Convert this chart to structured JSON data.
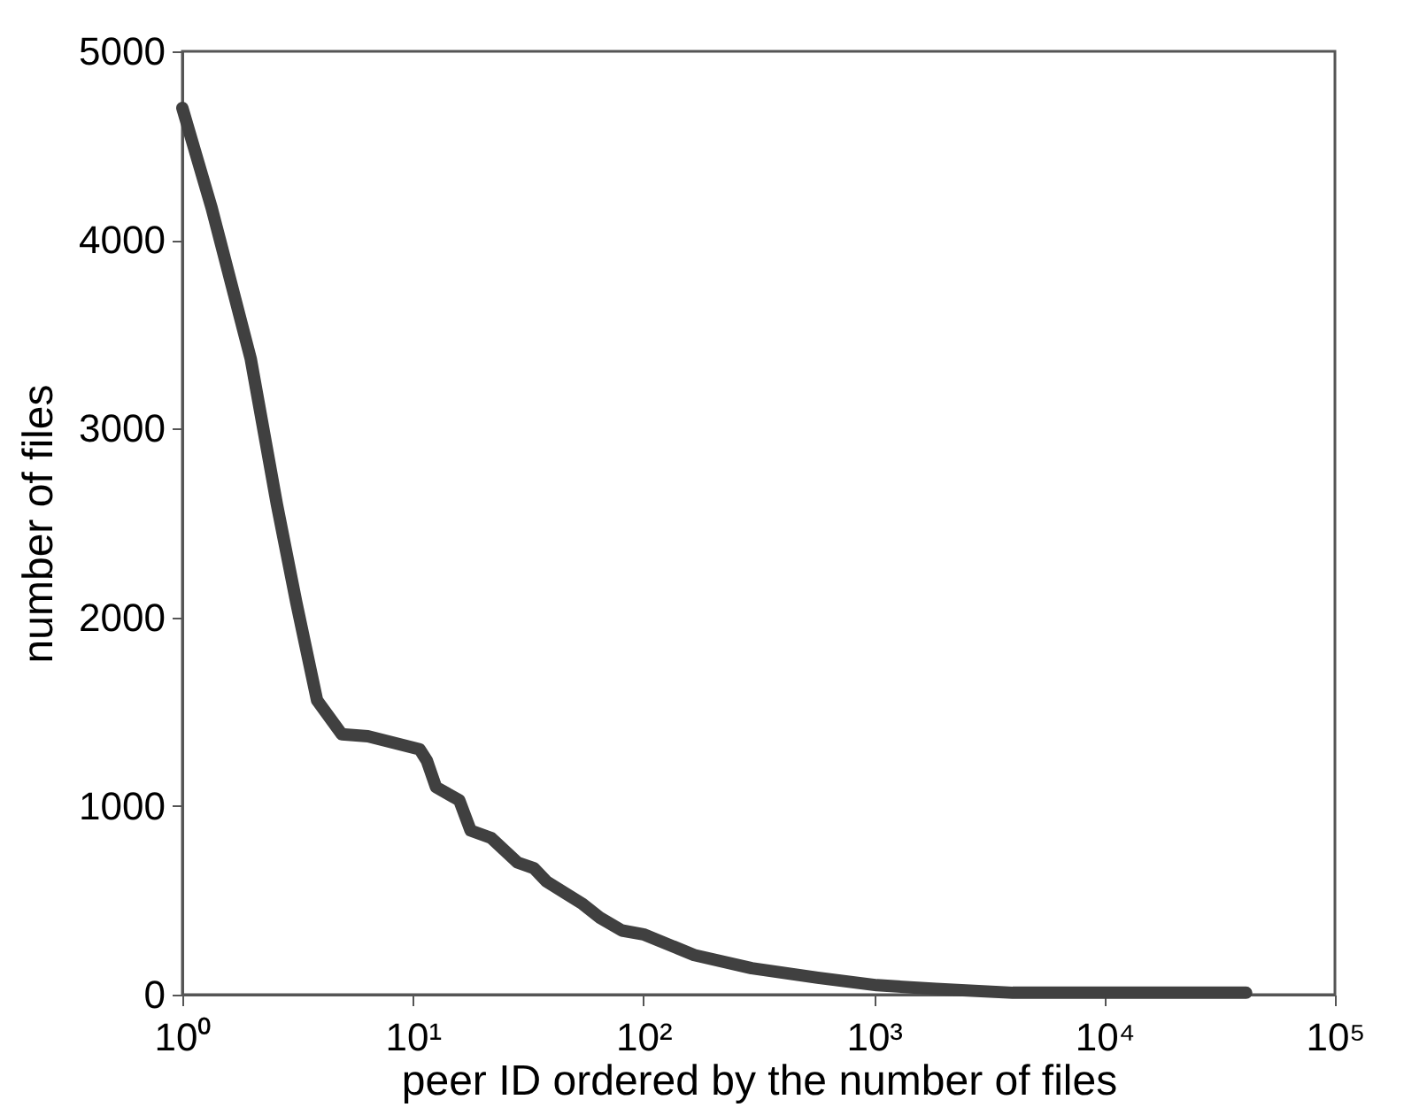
{
  "chart_data": {
    "type": "line",
    "xlabel": "peer ID ordered by the number of files",
    "ylabel": "number of files",
    "x": [
      1,
      1.34,
      1.98,
      2.57,
      3.12,
      3.84,
      4.92,
      6.38,
      10.7,
      11.5,
      12.6,
      15.9,
      17.8,
      21.9,
      28.5,
      33.5,
      38,
      54.6,
      64.4,
      80.7,
      100,
      166,
      295,
      570,
      1030,
      1860,
      4000,
      41200
    ],
    "series": [
      {
        "color": "#404040",
        "values": [
          4700,
          4170,
          3370,
          2600,
          2080,
          1560,
          1380,
          1370,
          1300,
          1240,
          1100,
          1030,
          870,
          830,
          700,
          670,
          600,
          480,
          410,
          340,
          320,
          210,
          140,
          90,
          50,
          30,
          10,
          10
        ]
      }
    ],
    "xlim": [
      1,
      100000
    ],
    "ylim": [
      0,
      5000
    ],
    "log": "x",
    "xticks": [
      {
        "value": 1,
        "label": "10⁰"
      },
      {
        "value": 10,
        "label": "10¹"
      },
      {
        "value": 100,
        "label": "10²"
      },
      {
        "value": 1000,
        "label": "10³"
      },
      {
        "value": 10000,
        "label": "10⁴"
      },
      {
        "value": 100000,
        "label": "10⁵"
      }
    ],
    "yticks": [
      0,
      1000,
      2000,
      3000,
      4000,
      5000
    ],
    "grid": false,
    "line_style": "solid"
  }
}
